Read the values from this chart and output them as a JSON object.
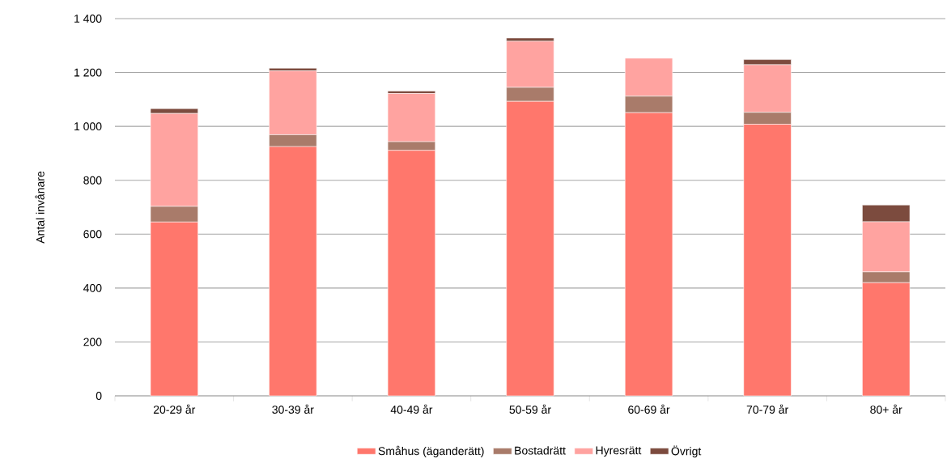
{
  "chart_data": {
    "type": "bar",
    "stacked": true,
    "ylabel": "Antal invånare",
    "categories": [
      "20-29 år",
      "30-39 år",
      "40-49 år",
      "50-59 år",
      "60-69 år",
      "70-79 år",
      "80+ år"
    ],
    "series": [
      {
        "name": "Småhus (äganderätt)",
        "color": "#ff776c",
        "values": [
          645,
          925,
          911,
          1093,
          1051,
          1008,
          420
        ]
      },
      {
        "name": "Bostadrätt",
        "color": "#a97b6a",
        "values": [
          58,
          44,
          32,
          52,
          61,
          44,
          40
        ]
      },
      {
        "name": "Hyresrätt",
        "color": "#ffa3a0",
        "values": [
          345,
          237,
          179,
          171,
          141,
          177,
          186
        ]
      },
      {
        "name": "Övrigt",
        "color": "#7c4b3e",
        "values": [
          18,
          10,
          9,
          12,
          0,
          19,
          62
        ]
      }
    ],
    "ylim": [
      0,
      1400
    ],
    "yticks": [
      0,
      200,
      400,
      600,
      800,
      {
        "value": 1000,
        "label": "1 000"
      },
      {
        "value": 1200,
        "label": "1 200"
      },
      {
        "value": 1400,
        "label": "1 400"
      }
    ],
    "grid": "y",
    "legend": "bottom"
  }
}
